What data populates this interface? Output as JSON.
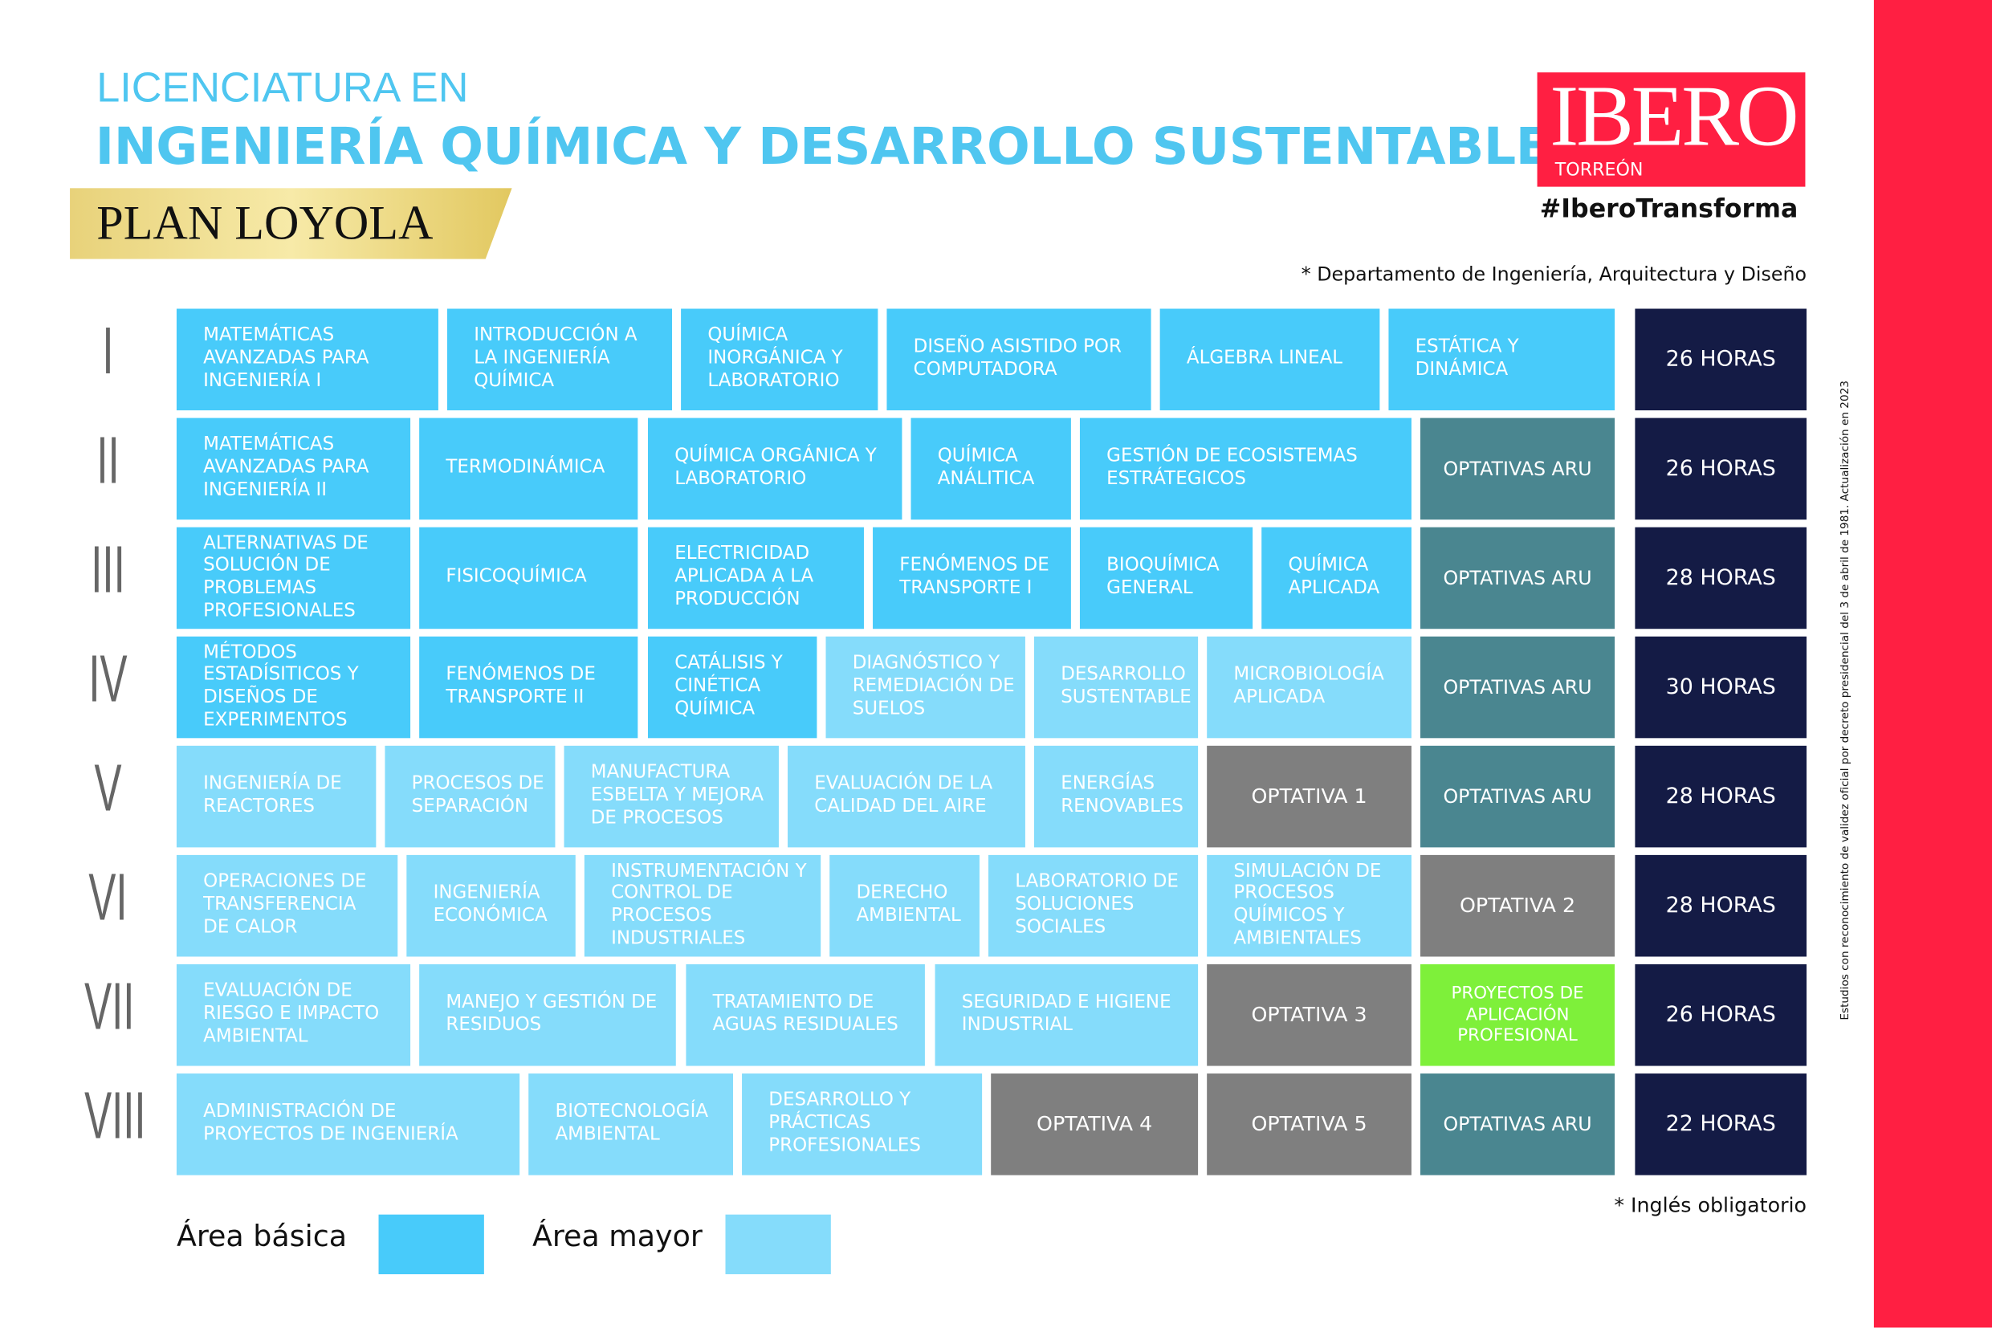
{
  "header": {
    "subtitle": "LICENCIATURA EN",
    "title": "INGENIERÍA QUÍMICA Y DESARROLLO SUSTENTABLE",
    "plan": "PLAN LOYOLA",
    "note": "* Departamento de Ingeniería, Arquitectura y Diseño"
  },
  "logo": {
    "name": "IBERO",
    "campus": "TORREÓN",
    "hashtag": "#IberoTransforma"
  },
  "side_note": "Estudios con reconocimiento de validez oficial por decreto presidencial del 3 de abril de 1981. Actualización en 2023",
  "hours_color": "#141b45",
  "semesters": [
    {
      "label": "I",
      "hours": "26 HORAS",
      "courses": [
        {
          "text": "MATEMÁTICAS AVANZADAS PARA INGENIERÍA I",
          "color": "#48cbfa"
        },
        {
          "text": "INTRODUCCIÓN A LA INGENIERÍA QUÍMICA",
          "color": "#48cbfa"
        },
        {
          "text": "QUÍMICA INORGÁNICA Y LABORATORIO",
          "color": "#48cbfa"
        },
        {
          "text": "DISEÑO ASISTIDO POR COMPUTADORA",
          "color": "#48cbfa"
        },
        {
          "text": "ÁLGEBRA LINEAL",
          "color": "#48cbfa"
        },
        {
          "text": "ESTÁTICA Y DINÁMICA",
          "color": "#48cbfa"
        }
      ]
    },
    {
      "label": "II",
      "hours": "26 HORAS",
      "courses": [
        {
          "text": "MATEMÁTICAS AVANZADAS PARA INGENIERÍA II",
          "color": "#48cbfa"
        },
        {
          "text": "TERMODINÁMICA",
          "color": "#48cbfa"
        },
        {
          "text": "QUÍMICA ORGÁNICA Y LABORATORIO",
          "color": "#48cbfa"
        },
        {
          "text": "QUÍMICA ANÁLITICA",
          "color": "#48cbfa"
        },
        {
          "text": "GESTIÓN DE ECOSISTEMAS ESTRÁTEGICOS",
          "color": "#48cbfa"
        },
        {
          "text": "OPTATIVAS ARU",
          "color": "#4a8690"
        }
      ]
    },
    {
      "label": "III",
      "hours": "28 HORAS",
      "courses": [
        {
          "text": "ALTERNATIVAS DE SOLUCIÓN DE PROBLEMAS PROFESIONALES",
          "color": "#48cbfa"
        },
        {
          "text": "FISICOQUÍMICA",
          "color": "#48cbfa"
        },
        {
          "text": "ELECTRICIDAD APLICADA A LA PRODUCCIÓN",
          "color": "#48cbfa"
        },
        {
          "text": "FENÓMENOS DE TRANSPORTE I",
          "color": "#48cbfa"
        },
        {
          "text": "BIOQUÍMICA GENERAL",
          "color": "#48cbfa"
        },
        {
          "text": "QUÍMICA APLICADA",
          "color": "#48cbfa"
        },
        {
          "text": "OPTATIVAS ARU",
          "color": "#4a8690"
        }
      ]
    },
    {
      "label": "IV",
      "hours": "30 HORAS",
      "courses": [
        {
          "text": "MÉTODOS ESTADÍSITICOS Y DISEÑOS DE EXPERIMENTOS",
          "color": "#48cbfa"
        },
        {
          "text": "FENÓMENOS DE TRANSPORTE II",
          "color": "#48cbfa"
        },
        {
          "text": "CATÁLISIS Y CINÉTICA QUÍMICA",
          "color": "#48cbfa"
        },
        {
          "text": "DIAGNÓSTICO Y REMEDIACIÓN DE SUELOS",
          "color": "#85dcfb"
        },
        {
          "text": "DESARROLLO SUSTENTABLE",
          "color": "#85dcfb"
        },
        {
          "text": "MICROBIOLOGÍA APLICADA",
          "color": "#85dcfb"
        },
        {
          "text": "OPTATIVAS ARU",
          "color": "#4a8690"
        }
      ]
    },
    {
      "label": "V",
      "hours": "28 HORAS",
      "courses": [
        {
          "text": "INGENIERÍA DE REACTORES",
          "color": "#85dcfb"
        },
        {
          "text": "PROCESOS DE SEPARACIÓN",
          "color": "#85dcfb"
        },
        {
          "text": "MANUFACTURA ESBELTA Y MEJORA DE PROCESOS",
          "color": "#85dcfb"
        },
        {
          "text": "EVALUACIÓN DE LA CALIDAD DEL AIRE",
          "color": "#85dcfb"
        },
        {
          "text": "ENERGÍAS RENOVABLES",
          "color": "#85dcfb"
        },
        {
          "text": "OPTATIVA 1",
          "color": "#7f7f7f"
        },
        {
          "text": "OPTATIVAS ARU",
          "color": "#4a8690"
        }
      ]
    },
    {
      "label": "VI",
      "hours": "28 HORAS",
      "courses": [
        {
          "text": "OPERACIONES DE TRANSFERENCIA DE CALOR",
          "color": "#85dcfb"
        },
        {
          "text": "INGENIERÍA ECONÓMICA",
          "color": "#85dcfb"
        },
        {
          "text": "INSTRUMENTACIÓN Y CONTROL DE PROCESOS INDUSTRIALES",
          "color": "#85dcfb"
        },
        {
          "text": "DERECHO AMBIENTAL",
          "color": "#85dcfb"
        },
        {
          "text": "LABORATORIO DE SOLUCIONES SOCIALES",
          "color": "#85dcfb"
        },
        {
          "text": "SIMULACIÓN DE PROCESOS QUÍMICOS Y AMBIENTALES",
          "color": "#85dcfb"
        },
        {
          "text": "OPTATIVA 2",
          "color": "#7f7f7f"
        }
      ]
    },
    {
      "label": "VII",
      "hours": "26 HORAS",
      "courses": [
        {
          "text": "EVALUACIÓN DE RIESGO E IMPACTO AMBIENTAL",
          "color": "#85dcfb"
        },
        {
          "text": "MANEJO Y GESTIÓN DE RESIDUOS",
          "color": "#85dcfb"
        },
        {
          "text": "TRATAMIENTO DE AGUAS RESIDUALES",
          "color": "#85dcfb"
        },
        {
          "text": "SEGURIDAD E HIGIENE INDUSTRIAL",
          "color": "#85dcfb"
        },
        {
          "text": "OPTATIVA 3",
          "color": "#7f7f7f"
        },
        {
          "text": "PROYECTOS DE APLICACIÓN PROFESIONAL",
          "color": "#7ef03a"
        }
      ]
    },
    {
      "label": "VIII",
      "hours": "22 HORAS",
      "courses": [
        {
          "text": "ADMINISTRACIÓN DE PROYECTOS DE INGENIERÍA",
          "color": "#85dcfb"
        },
        {
          "text": "BIOTECNOLOGÍA AMBIENTAL",
          "color": "#85dcfb"
        },
        {
          "text": "DESARROLLO Y PRÁCTICAS PROFESIONALES",
          "color": "#85dcfb"
        },
        {
          "text": "OPTATIVA 4",
          "color": "#7f7f7f"
        },
        {
          "text": "OPTATIVA 5",
          "color": "#7f7f7f"
        },
        {
          "text": "OPTATIVAS ARU",
          "color": "#4a8690"
        }
      ]
    }
  ],
  "footnote": "* Inglés obligatorio",
  "legend": [
    {
      "label": "Área básica",
      "color": "#48cbfa"
    },
    {
      "label": "Área mayor",
      "color": "#85dcfb"
    }
  ]
}
